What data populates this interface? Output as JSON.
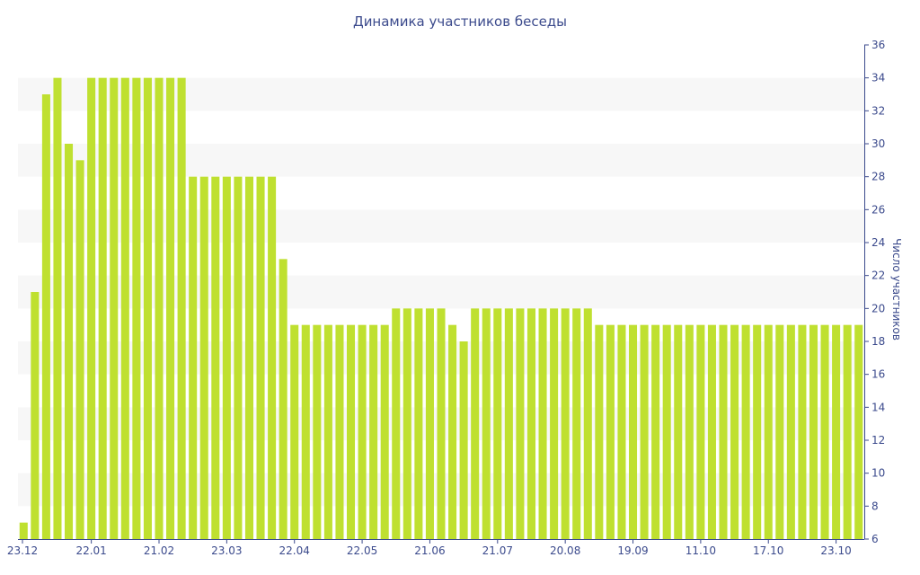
{
  "chart_data": {
    "type": "bar",
    "title": "Динамика участников беседы",
    "ylabel": "Число участников",
    "xlabel": "",
    "ylim": [
      6,
      36
    ],
    "y_ticks": [
      6,
      8,
      10,
      12,
      14,
      16,
      18,
      20,
      22,
      24,
      26,
      28,
      30,
      32,
      34,
      36
    ],
    "y_axis_position": "right",
    "banded_background": true,
    "x_tick_labels": [
      "23.12",
      "22.01",
      "21.02",
      "23.03",
      "22.04",
      "22.05",
      "21.06",
      "21.07",
      "20.08",
      "19.09",
      "11.10",
      "17.10",
      "23.10"
    ],
    "x_tick_bar_index": [
      0,
      6,
      12,
      18,
      24,
      30,
      36,
      42,
      48,
      54,
      60,
      66,
      72
    ],
    "values": [
      7,
      21,
      33,
      34,
      30,
      29,
      34,
      34,
      34,
      34,
      34,
      34,
      34,
      34,
      34,
      28,
      28,
      28,
      28,
      28,
      28,
      28,
      28,
      23,
      19,
      19,
      19,
      19,
      19,
      19,
      19,
      19,
      19,
      20,
      20,
      20,
      20,
      20,
      19,
      18,
      20,
      20,
      20,
      20,
      20,
      20,
      20,
      20,
      20,
      20,
      20,
      19,
      19,
      19,
      19,
      19,
      19,
      19,
      19,
      19,
      19,
      19,
      19,
      19,
      19,
      19,
      19,
      19,
      19,
      19,
      19,
      19,
      19,
      19,
      19
    ],
    "bar_color": "#bfe030",
    "text_color": "#3b4a8c",
    "band_color": "#f7f7f7"
  }
}
